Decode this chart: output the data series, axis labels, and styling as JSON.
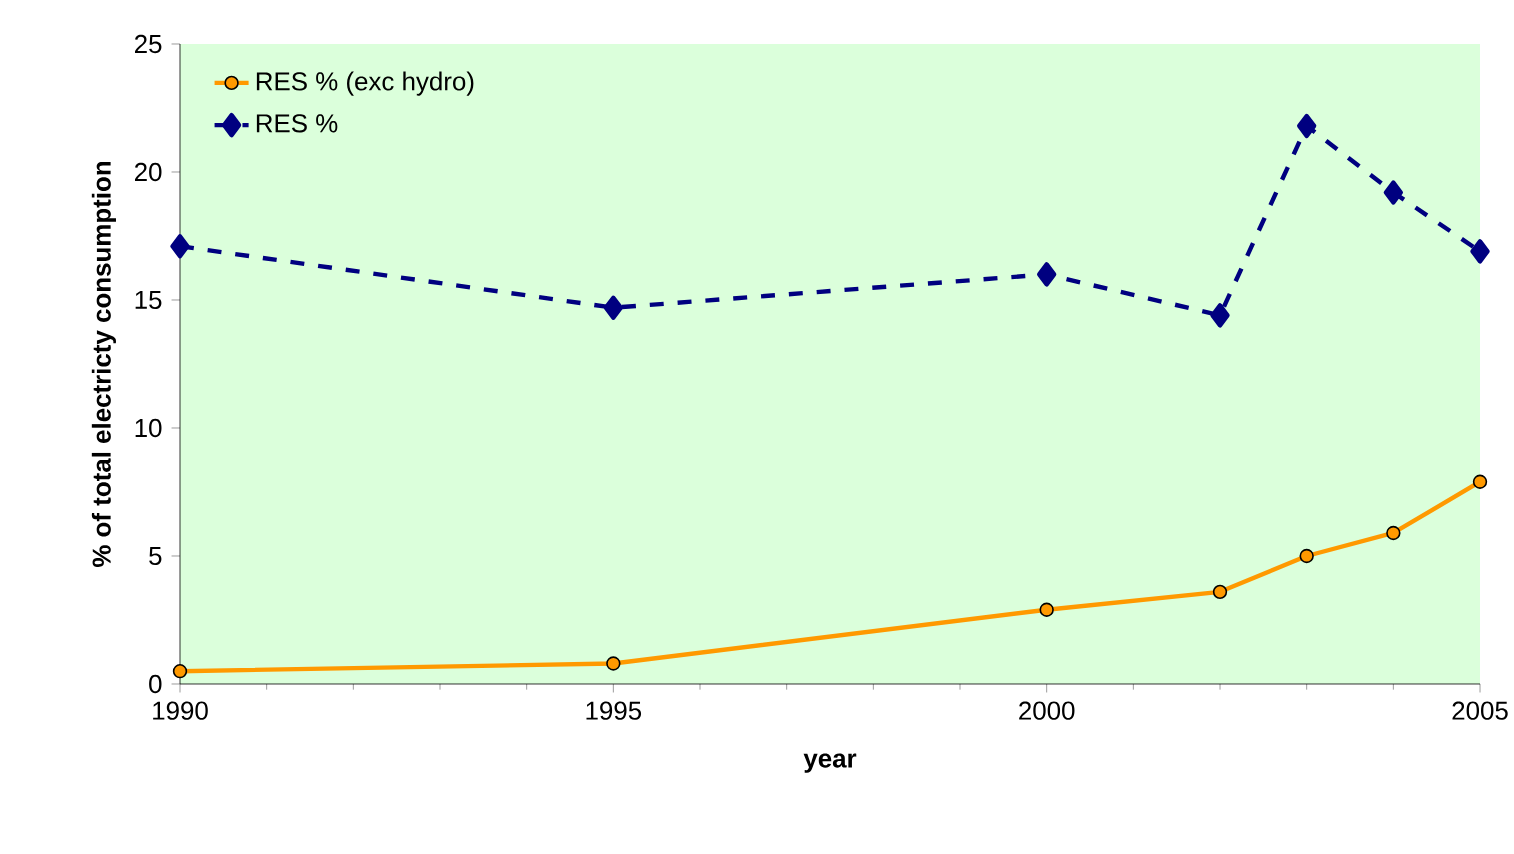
{
  "chart_data": {
    "type": "line",
    "xlabel": "year",
    "ylabel": "% of total electricty  consumption",
    "x": [
      1990,
      1995,
      2000,
      2002,
      2003,
      2004,
      2005
    ],
    "series": [
      {
        "name": "RES % (exc hydro)",
        "color": "#ff9900",
        "marker": "circle",
        "line_style": "solid",
        "values": [
          0.5,
          0.8,
          2.9,
          3.6,
          5.0,
          5.9,
          7.9
        ]
      },
      {
        "name": "RES %",
        "color": "#000080",
        "marker": "diamond",
        "line_style": "dashed",
        "values": [
          17.1,
          14.7,
          16.0,
          14.4,
          21.8,
          19.2,
          16.9
        ]
      }
    ],
    "xlim": [
      1990,
      2005
    ],
    "xticks": [
      1990,
      1995,
      2000,
      2005
    ],
    "ylim": [
      0,
      25
    ],
    "yticks": [
      0,
      5,
      10,
      15,
      20,
      25
    ],
    "grid": false,
    "legend": "top left"
  }
}
